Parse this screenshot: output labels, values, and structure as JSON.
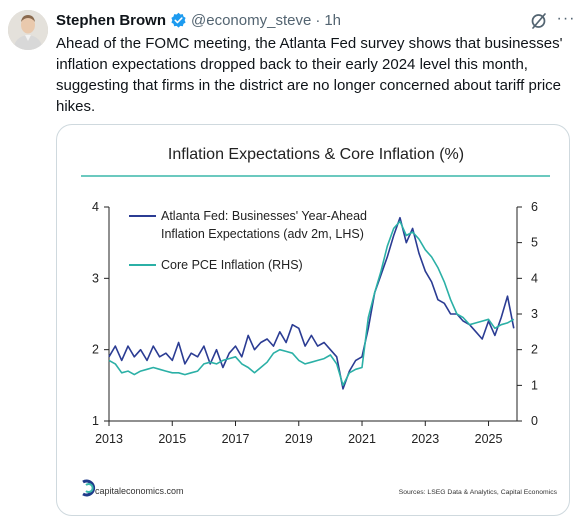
{
  "tweet": {
    "author_name": "Stephen Brown",
    "handle": "@economy_steve",
    "separator": "·",
    "time": "1h",
    "text": "Ahead of the FOMC meeting, the Atlanta Fed survey shows that businesses' inflation expectations dropped back to their early 2024 level this month, suggesting that firms in the district are no longer concerned about tariff price hikes.",
    "icons": {
      "verified": "verified-badge-icon",
      "grok": "grok-icon",
      "more": "more-options-icon"
    },
    "colors": {
      "verified": "#1d9bf0",
      "handle": "#536471"
    }
  },
  "chart_data": {
    "type": "line",
    "title": "Inflation Expectations & Core Inflation (%)",
    "x_ticks": [
      "2013",
      "2015",
      "2017",
      "2019",
      "2021",
      "2023",
      "2025"
    ],
    "xlim": [
      2013,
      2025.9
    ],
    "y_left": {
      "lim": [
        1,
        4
      ],
      "ticks": [
        "1",
        "2",
        "3",
        "4"
      ]
    },
    "y_right": {
      "lim": [
        0,
        6
      ],
      "ticks": [
        "0",
        "1",
        "2",
        "3",
        "4",
        "5",
        "6"
      ]
    },
    "legend_position": "top-left",
    "series": [
      {
        "name": "Atlanta Fed: Businesses' Year-Ahead Inflation Expectations (adv 2m, LHS)",
        "axis": "left",
        "color": "#2b3c93",
        "x": [
          2013.0,
          2013.2,
          2013.4,
          2013.6,
          2013.8,
          2014.0,
          2014.2,
          2014.4,
          2014.6,
          2014.8,
          2015.0,
          2015.2,
          2015.4,
          2015.6,
          2015.8,
          2016.0,
          2016.2,
          2016.4,
          2016.6,
          2016.8,
          2017.0,
          2017.2,
          2017.4,
          2017.6,
          2017.8,
          2018.0,
          2018.2,
          2018.4,
          2018.6,
          2018.8,
          2019.0,
          2019.2,
          2019.4,
          2019.6,
          2019.8,
          2020.0,
          2020.2,
          2020.4,
          2020.6,
          2020.8,
          2021.0,
          2021.2,
          2021.4,
          2021.6,
          2021.8,
          2022.0,
          2022.2,
          2022.4,
          2022.6,
          2022.8,
          2023.0,
          2023.2,
          2023.4,
          2023.6,
          2023.8,
          2024.0,
          2024.2,
          2024.4,
          2024.6,
          2024.8,
          2025.0,
          2025.2,
          2025.4,
          2025.6,
          2025.8
        ],
        "values": [
          1.9,
          2.05,
          1.85,
          2.05,
          1.9,
          2.0,
          1.85,
          2.05,
          1.9,
          1.95,
          1.85,
          2.1,
          1.8,
          1.95,
          1.9,
          2.05,
          1.8,
          2.0,
          1.75,
          1.95,
          2.05,
          1.9,
          2.2,
          2.0,
          2.1,
          2.15,
          2.05,
          2.25,
          2.1,
          2.35,
          2.3,
          2.05,
          2.2,
          2.05,
          2.1,
          2.0,
          1.9,
          1.45,
          1.7,
          1.85,
          1.9,
          2.3,
          2.8,
          3.05,
          3.3,
          3.6,
          3.85,
          3.5,
          3.7,
          3.35,
          3.1,
          2.95,
          2.7,
          2.65,
          2.5,
          2.5,
          2.4,
          2.35,
          2.25,
          2.15,
          2.4,
          2.2,
          2.45,
          2.75,
          2.3
        ]
      },
      {
        "name": "Core PCE Inflation (RHS)",
        "axis": "right",
        "color": "#2bb0a6",
        "x": [
          2013.0,
          2013.2,
          2013.4,
          2013.6,
          2013.8,
          2014.0,
          2014.2,
          2014.4,
          2014.6,
          2014.8,
          2015.0,
          2015.2,
          2015.4,
          2015.6,
          2015.8,
          2016.0,
          2016.2,
          2016.4,
          2016.6,
          2016.8,
          2017.0,
          2017.2,
          2017.4,
          2017.6,
          2017.8,
          2018.0,
          2018.2,
          2018.4,
          2018.6,
          2018.8,
          2019.0,
          2019.2,
          2019.4,
          2019.6,
          2019.8,
          2020.0,
          2020.2,
          2020.4,
          2020.6,
          2020.8,
          2021.0,
          2021.2,
          2021.4,
          2021.6,
          2021.8,
          2022.0,
          2022.2,
          2022.4,
          2022.6,
          2022.8,
          2023.0,
          2023.2,
          2023.4,
          2023.6,
          2023.8,
          2024.0,
          2024.2,
          2024.4,
          2024.6,
          2024.8,
          2025.0,
          2025.2,
          2025.4,
          2025.6,
          2025.8
        ],
        "values": [
          1.7,
          1.6,
          1.35,
          1.4,
          1.3,
          1.4,
          1.45,
          1.5,
          1.45,
          1.4,
          1.35,
          1.35,
          1.3,
          1.35,
          1.4,
          1.6,
          1.65,
          1.6,
          1.7,
          1.75,
          1.8,
          1.6,
          1.5,
          1.35,
          1.5,
          1.65,
          1.9,
          2.0,
          1.95,
          1.9,
          1.7,
          1.6,
          1.65,
          1.7,
          1.75,
          1.85,
          1.6,
          1.0,
          1.35,
          1.45,
          1.5,
          2.9,
          3.6,
          4.2,
          4.9,
          5.4,
          5.6,
          5.2,
          5.3,
          5.1,
          4.8,
          4.6,
          4.3,
          3.9,
          3.4,
          3.0,
          2.9,
          2.7,
          2.75,
          2.8,
          2.85,
          2.6,
          2.7,
          2.75,
          2.85
        ]
      }
    ],
    "branding": "capitaleconomics.com",
    "source": "Sources: LSEG Data & Analytics, Capital Economics"
  }
}
